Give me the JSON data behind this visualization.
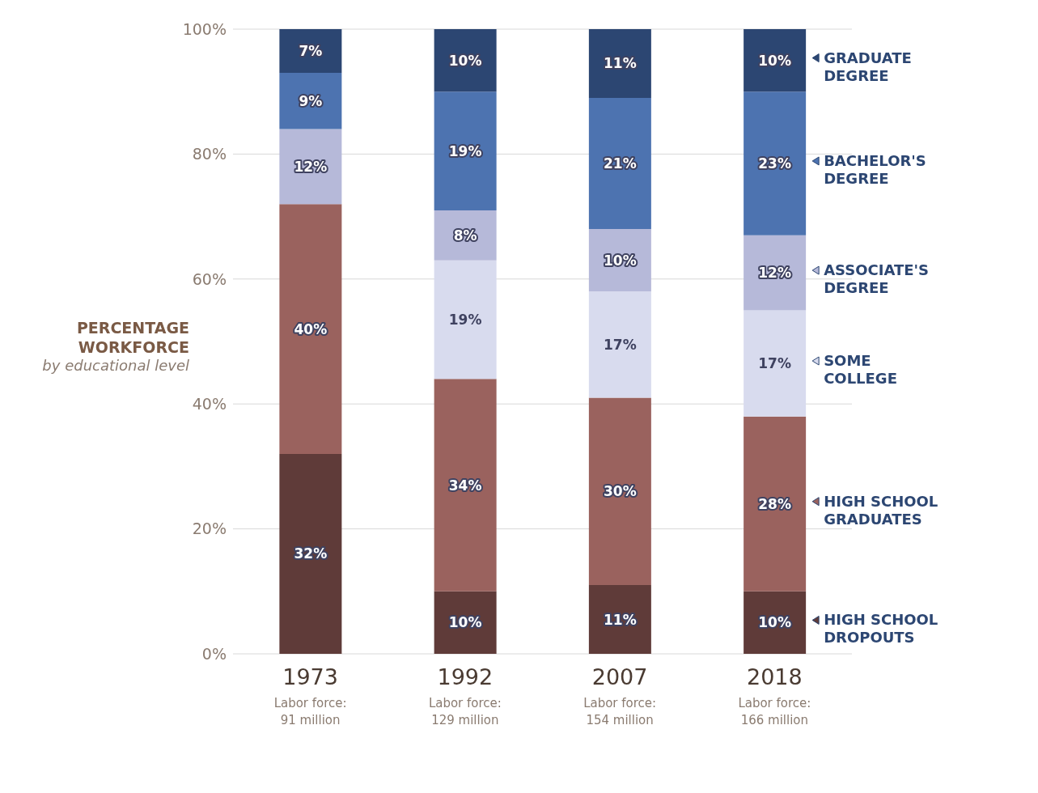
{
  "chart_data": {
    "type": "bar",
    "stacked": true,
    "categories": [
      "1973",
      "1992",
      "2007",
      "2018"
    ],
    "series": [
      {
        "name": "HIGH SCHOOL DROPOUTS",
        "color": "#5f3b39",
        "values": [
          32,
          10,
          11,
          10
        ],
        "value_labels": [
          "32%",
          "10%",
          "11%",
          "10%"
        ]
      },
      {
        "name": "HIGH SCHOOL GRADUATES",
        "color": "#9a625e",
        "values": [
          40,
          34,
          30,
          28
        ],
        "value_labels": [
          "40%",
          "34%",
          "30%",
          "28%"
        ]
      },
      {
        "name": "SOME COLLEGE",
        "color": "#d8dbee",
        "values": [
          null,
          19,
          17,
          17
        ],
        "value_labels": [
          null,
          "19%",
          "17%",
          "17%"
        ]
      },
      {
        "name": "ASSOCIATE'S DEGREE",
        "color": "#b6b9d9",
        "values": [
          12,
          8,
          10,
          12
        ],
        "value_labels": [
          "12%",
          "8%",
          "10%",
          "12%"
        ]
      },
      {
        "name": "BACHELOR'S DEGREE",
        "color": "#4d73b0",
        "values": [
          9,
          19,
          21,
          23
        ],
        "value_labels": [
          "9%",
          "19%",
          "21%",
          "23%"
        ]
      },
      {
        "name": "GRADUATE DEGREE",
        "color": "#2c4672",
        "values": [
          7,
          10,
          11,
          10
        ],
        "value_labels": [
          "7%",
          "10%",
          "11%",
          "10%"
        ]
      }
    ],
    "ylabel": "PERCENTAGE WORKFORCE",
    "annotations": [
      "by educational level",
      "Labor force: 91 million",
      "Labor force: 129 million",
      "Labor force: 154 million",
      "Labor force: 166 million"
    ],
    "ylim": [
      0,
      100
    ],
    "yticks": [
      {
        "value": 0,
        "label": "0%"
      },
      {
        "value": 20,
        "label": "20%"
      },
      {
        "value": 40,
        "label": "40%"
      },
      {
        "value": 60,
        "label": "60%"
      },
      {
        "value": 80,
        "label": "80%"
      },
      {
        "value": 100,
        "label": "100%"
      }
    ],
    "grid": "y",
    "legend": "right"
  }
}
